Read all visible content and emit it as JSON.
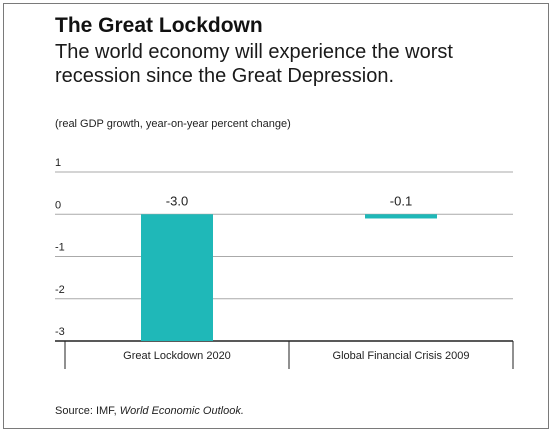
{
  "header": {
    "title": "The Great Lockdown",
    "subtitle": "The world economy will experience the worst recession since the Great Depression."
  },
  "footer": {
    "source_prefix": "Source: IMF, ",
    "source_publication": "World Economic Outlook."
  },
  "colors": {
    "bar": "#1fb8b8",
    "grid": "#aaaaaa",
    "axis": "#222222",
    "text": "#222222"
  },
  "chart_data": {
    "type": "bar",
    "title": "The Great Lockdown",
    "subtitle": "The world economy will experience the worst recession since the Great Depression.",
    "units_note": "(real GDP growth, year-on-year percent change)",
    "categories": [
      "Great Lockdown 2020",
      "Global Financial Crisis 2009"
    ],
    "values": [
      -3.0,
      -0.1
    ],
    "value_labels": [
      "-3.0",
      "-0.1"
    ],
    "ylim": [
      -3,
      1
    ],
    "yticks": [
      1,
      0,
      -1,
      -2,
      -3
    ],
    "ytick_labels": [
      "1",
      "0",
      "-1",
      "-2",
      "-3"
    ],
    "xlabel": "",
    "ylabel": "",
    "grid": true,
    "legend": "none"
  }
}
